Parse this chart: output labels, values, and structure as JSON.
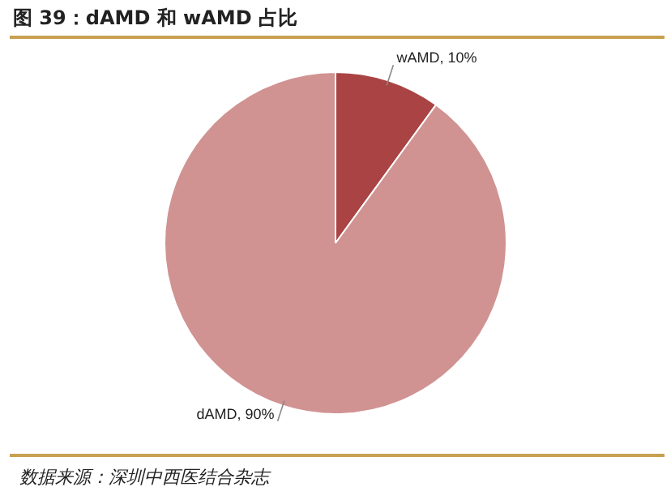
{
  "chart_data": {
    "type": "pie",
    "title": "图 39：dAMD 和 wAMD 占比",
    "categories": [
      "wAMD",
      "dAMD"
    ],
    "values": [
      10,
      90
    ],
    "colors": [
      "#aa4444",
      "#d09392"
    ],
    "value_labels": [
      "10%",
      "90%"
    ],
    "legend": false,
    "annotations": [
      "数据来源：深圳中西医结合杂志"
    ]
  }
}
